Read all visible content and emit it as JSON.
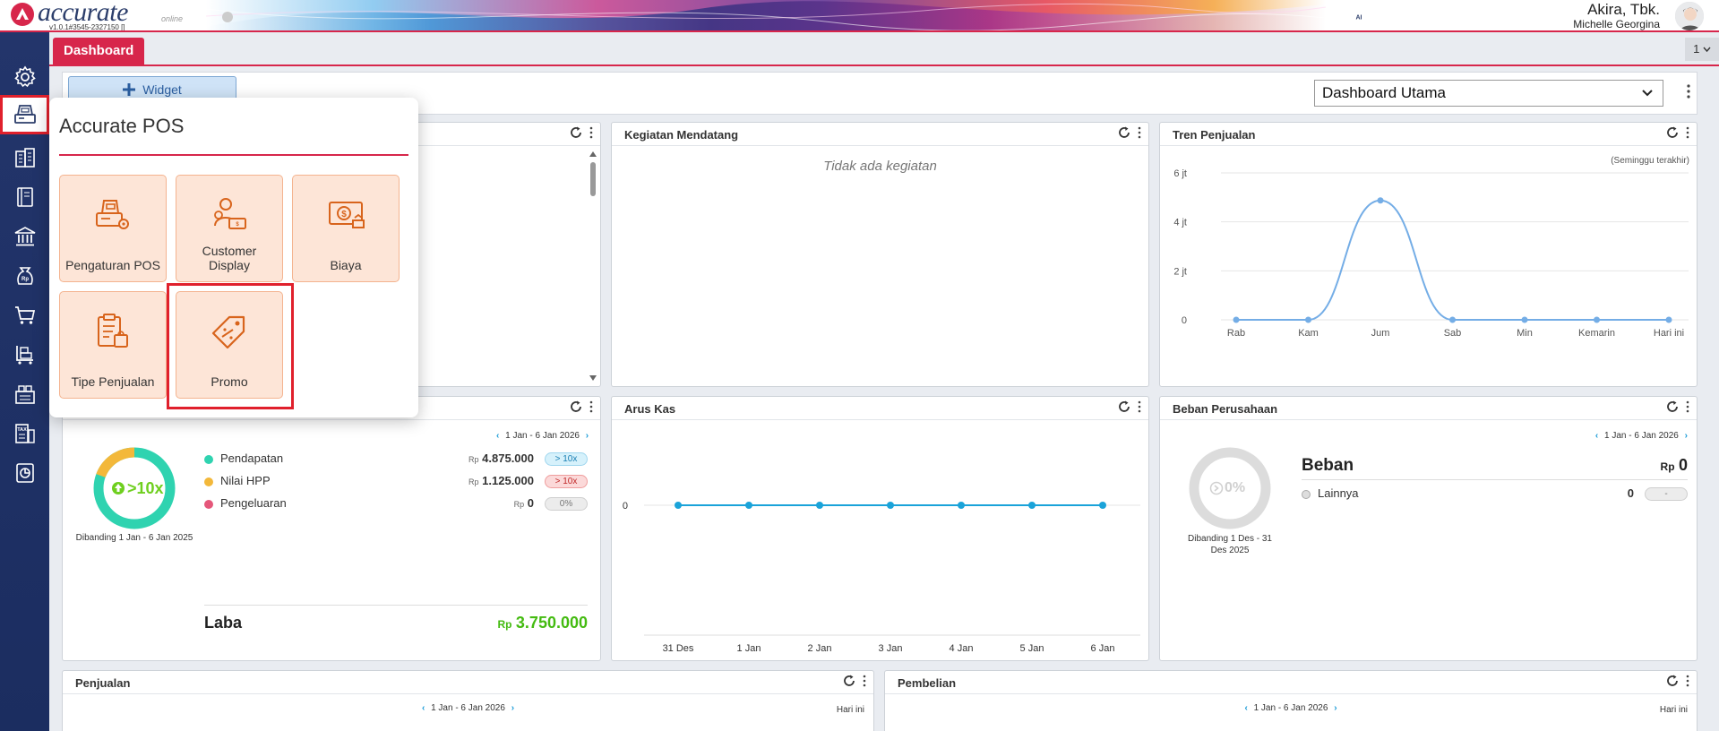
{
  "header": {
    "logo_text": "accurate",
    "logo_sub": "online",
    "version": "v1.0.1#3545-2327150 []",
    "user_name": "Akira, Tbk.",
    "user_sub": "Michelle Georgina"
  },
  "tabs": {
    "dashboard": "Dashboard",
    "counter": "1"
  },
  "toolbar": {
    "widget_label": "Widget",
    "select_value": "Dashboard Utama"
  },
  "popup": {
    "title": "Accurate POS",
    "tiles": [
      {
        "label": "Pengaturan POS"
      },
      {
        "label": "Customer Display"
      },
      {
        "label": "Biaya"
      },
      {
        "label": "Tipe Penjualan"
      },
      {
        "label": "Promo"
      }
    ]
  },
  "kegiatan": {
    "title": "Kegiatan Mendatang",
    "empty": "Tidak ada kegiatan"
  },
  "tren": {
    "title": "Tren Penjualan",
    "subtitle": "(Seminggu terakhir)"
  },
  "laba_rugi": {
    "date_range": "1 Jan - 6 Jan 2026",
    "ring_value": ">10x",
    "compare": "Dibanding 1 Jan - 6 Jan 2025",
    "rows": [
      {
        "label": "Pendapatan",
        "currency": "Rp",
        "value": "4.875.000",
        "badge": "> 10x",
        "color": "#2fd3b0"
      },
      {
        "label": "Nilai HPP",
        "currency": "Rp",
        "value": "1.125.000",
        "badge": "> 10x",
        "color": "#f3b83a"
      },
      {
        "label": "Pengeluaran",
        "currency": "Rp",
        "value": "0",
        "badge": "0%",
        "color": "#e5577a"
      }
    ],
    "laba_label": "Laba",
    "laba_currency": "Rp",
    "laba_value": "3.750.000"
  },
  "arus_kas": {
    "title": "Arus Kas"
  },
  "beban": {
    "title": "Beban Perusahaan",
    "date_range": "1 Jan - 6 Jan 2026",
    "ring_value": "0%",
    "compare": "Dibanding 1 Des - 31 Des 2025",
    "heading": "Beban",
    "currency": "Rp",
    "total": "0",
    "rows": [
      {
        "label": "Lainnya",
        "value": "0",
        "badge": "-"
      }
    ]
  },
  "penjualan": {
    "title": "Penjualan",
    "date_range": "1 Jan - 6 Jan 2026",
    "right": "Hari ini"
  },
  "pembelian": {
    "title": "Pembelian",
    "date_range": "1 Jan - 6 Jan 2026",
    "right": "Hari ini"
  },
  "chart_data": [
    {
      "type": "line",
      "title": "Tren Penjualan",
      "subtitle": "(Seminggu terakhir)",
      "categories": [
        "Rab",
        "Kam",
        "Jum",
        "Sab",
        "Min",
        "Kemarin",
        "Hari ini"
      ],
      "values": [
        0,
        0,
        4875000,
        0,
        0,
        0,
        0
      ],
      "y_ticks": [
        "0",
        "2 jt",
        "4 jt",
        "6 jt"
      ],
      "ylim": [
        0,
        6000000
      ],
      "grid": true
    },
    {
      "type": "line",
      "title": "Arus Kas",
      "categories": [
        "31 Des",
        "1 Jan",
        "2 Jan",
        "3 Jan",
        "4 Jan",
        "5 Jan",
        "6 Jan"
      ],
      "values": [
        0,
        0,
        0,
        0,
        0,
        0,
        0
      ],
      "y_ticks": [
        "0"
      ],
      "grid": false
    }
  ],
  "colors": {
    "accent": "#d7264b",
    "sidebar": "#23356b",
    "tile_bg": "#fde5d7",
    "tile_border": "#f4b38f",
    "icon_orange": "#d8641c",
    "line_blue": "#74ade6",
    "cash_blue": "#1aa3d9",
    "profit_green": "#44bb11"
  }
}
